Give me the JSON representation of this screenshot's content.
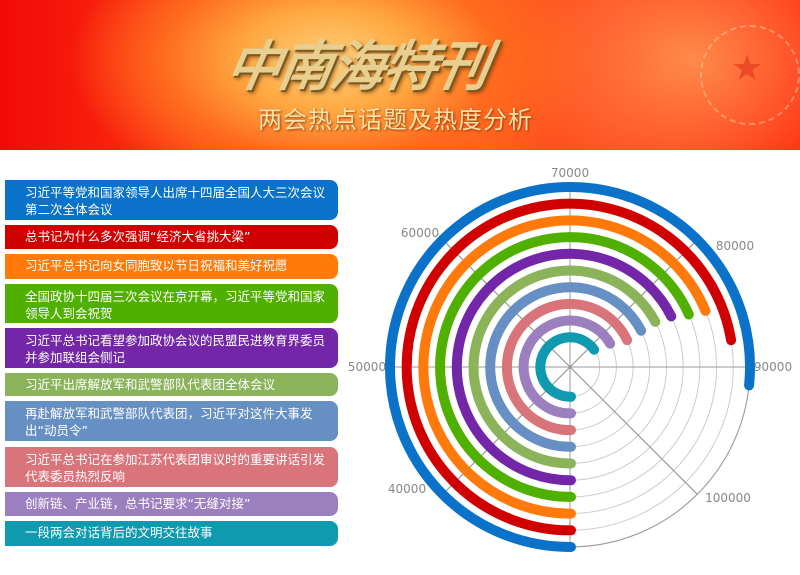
{
  "header": {
    "title": "中南海特刊",
    "subtitle": "两会热点话题及热度分析"
  },
  "chart_data": {
    "type": "radial-bar",
    "angle_axis": {
      "min": 30000,
      "max": 110000,
      "ticks": [
        40000,
        50000,
        60000,
        70000,
        80000,
        90000,
        100000
      ],
      "tick_labels": [
        "40000",
        "50000",
        "60000",
        "70000",
        "80000",
        "90000",
        "100000"
      ]
    },
    "grid": true,
    "categories": [
      "习近平等党和国家领导人出席十四届全国人大三次会议第二次全体会议",
      "总书记为什么多次强调“经济大省挑大梁”",
      "习近平总书记向女同胞致以节日祝福和美好祝愿",
      "全国政协十四届三次会议在京开幕，习近平等党和国家领导人到会祝贺",
      "习近平总书记看望参加政协会议的民盟民进教育界委员并参加联组会侧记",
      "习近平出席解放军和武警部队代表团全体会议",
      "再赴解放军和武警部队代表团，习近平对这件大事发出“动员令”",
      "习近平总书记在参加江苏代表团审议时的重要讲话引发代表委员热烈反响",
      "创新链、产业链，总书记要求“无缝对接”",
      "一段两会对话背后的文明交往故事"
    ],
    "values": [
      91300,
      87900,
      85000,
      84700,
      84100,
      83800,
      84000,
      84400,
      83300,
      82100
    ],
    "colors": [
      "#0a72c8",
      "#d00000",
      "#ff7a0a",
      "#4fb000",
      "#7426a8",
      "#8ab35a",
      "#6690c4",
      "#d8747a",
      "#9b7fbe",
      "#0f9aaf"
    ]
  }
}
